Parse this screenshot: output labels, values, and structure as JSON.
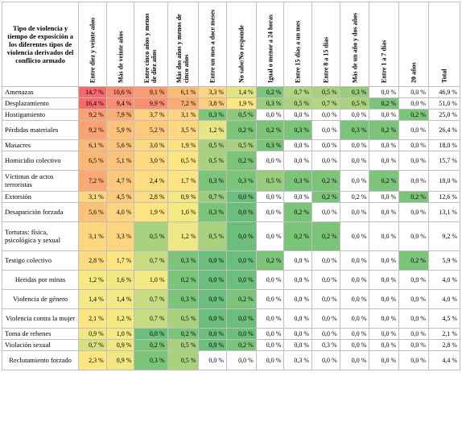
{
  "table": {
    "corner_header": "Tipo de violencia y tiempo de exposición a los diferentes tipos de violencia derivados del conflicto armado",
    "columns": [
      "Entre diez y veinte años",
      "Más de veinte años",
      "Entre cinco años y menos de diez años",
      "Más dos años y menos de cinco años",
      "Entre un mes a doce meses",
      "No sabe/No responde",
      "Igual o menor a 24 horas",
      "Entre 15 días a un mes",
      "Entre 8 a 15 días",
      "Más de un año y dos años",
      "Entre 1 a 7 días",
      "20 años",
      "Total"
    ],
    "rows": [
      {
        "label": "Amenazas",
        "values": [
          "14,7 %",
          "10,6 %",
          "9,1 %",
          "6,1 %",
          "3,3 %",
          "1,4 %",
          "0,2 %",
          "0,7 %",
          "0,5 %",
          "0,3 %",
          "0,0 %",
          "0,0 %",
          "46,9 %"
        ]
      },
      {
        "label": "Desplazamiento",
        "values": [
          "16,4 %",
          "9,4 %",
          "9,9 %",
          "7,2 %",
          "3,8 %",
          "1,9 %",
          "0,3 %",
          "0,5 %",
          "0,7 %",
          "0,5 %",
          "0,2 %",
          "0,0 %",
          "51,0 %"
        ]
      },
      {
        "label": "Hostigamiento",
        "values": [
          "9,2 %",
          "7,9 %",
          "3,7 %",
          "3,1 %",
          "0,3 %",
          "0,5 %",
          "0,0 %",
          "0,0 %",
          "0,0 %",
          "0,0 %",
          "0,0 %",
          "0,2 %",
          "25,0 %"
        ]
      },
      {
        "label": "Pérdidas materiales",
        "values": [
          "9,2 %",
          "5,9 %",
          "5,2 %",
          "3,5 %",
          "1,2 %",
          "0,2 %",
          "0,2 %",
          "0,3 %",
          "0,0 %",
          "0,3 %",
          "0,2 %",
          "0,0 %",
          "26,4 %"
        ]
      },
      {
        "label": "Masacres",
        "values": [
          "6,1 %",
          "5,6 %",
          "3,0 %",
          "1,9 %",
          "0,5 %",
          "0,5 %",
          "0,3 %",
          "0,0 %",
          "0,0 %",
          "0,0 %",
          "0,0 %",
          "0,0 %",
          "18,0 %"
        ]
      },
      {
        "label": "Homicidio colectivo",
        "values": [
          "6,5 %",
          "5,1 %",
          "3,0 %",
          "0,5 %",
          "0,5 %",
          "0,2 %",
          "0,0 %",
          "0,0 %",
          "0,0 %",
          "0,0 %",
          "0,0 %",
          "0,0 %",
          "15,7 %"
        ]
      },
      {
        "label": "Víctimas de actos terroristas",
        "values": [
          "7,2 %",
          "4,7 %",
          "2,4 %",
          "1,7 %",
          "0,3 %",
          "0,3 %",
          "0,5 %",
          "0,3 %",
          "0,2 %",
          "0,0 %",
          "0,2 %",
          "0,0 %",
          "18,0 %"
        ]
      },
      {
        "label": "Extorsión",
        "values": [
          "3,1 %",
          "4,5 %",
          "2,8 %",
          "0,9 %",
          "0,7 %",
          "0,0 %",
          "0,0 %",
          "0,0 %",
          "0,2 %",
          "0,2 %",
          "0,0 %",
          "0,2 %",
          "12,6 %"
        ]
      },
      {
        "label": "Desaparición forzada",
        "values": [
          "5,6 %",
          "4,0 %",
          "1,9 %",
          "1,0 %",
          "0,3 %",
          "0,0 %",
          "0,0 %",
          "0,2 %",
          "0,0 %",
          "0,0 %",
          "0,0 %",
          "0,0 %",
          "13,1 %"
        ]
      },
      {
        "label": "Torturas: física, psicológica y sexual",
        "values": [
          "3,1 %",
          "3,3 %",
          "0,5 %",
          "1,2 %",
          "0,5 %",
          "0,0 %",
          "0,0 %",
          "0,2 %",
          "0,2 %",
          "0,0 %",
          "0,0 %",
          "0,0 %",
          "9,2 %"
        ]
      },
      {
        "label": "Testigo colectivo",
        "values": [
          "2,8 %",
          "1,7 %",
          "0,7 %",
          "0,3 %",
          "0,0 %",
          "0,0 %",
          "0,2 %",
          "0,0 %",
          "0,0 %",
          "0,0 %",
          "0,0 %",
          "0,2 %",
          "5,9 %"
        ]
      },
      {
        "label": "Heridas por minas",
        "center": true,
        "values": [
          "1,2 %",
          "1,6 %",
          "1,0 %",
          "0,2 %",
          "0,0 %",
          "0,0 %",
          "0,0 %",
          "0,0 %",
          "0,0 %",
          "0,0 %",
          "0,0 %",
          "0,0 %",
          "4,0 %"
        ]
      },
      {
        "label": "Violencia de género",
        "center": true,
        "values": [
          "1,4 %",
          "1,4 %",
          "0,7 %",
          "0,3 %",
          "0,0 %",
          "0,2 %",
          "0,0 %",
          "0,0 %",
          "0,0 %",
          "0,0 %",
          "0,0 %",
          "0,0 %",
          "4,0 %"
        ]
      },
      {
        "label": "Violencia contra la mujer",
        "center": true,
        "values": [
          "2,1 %",
          "1,2 %",
          "0,7 %",
          "0,5 %",
          "0,0 %",
          "0,0 %",
          "0,0 %",
          "0,0 %",
          "0,0 %",
          "0,0 %",
          "0,0 %",
          "0,0 %",
          "4,5 %"
        ]
      },
      {
        "label": "Toma de rehenes",
        "values": [
          "0,9 %",
          "1,0 %",
          "0,0 %",
          "0,2 %",
          "0,0 %",
          "0,0 %",
          "0,0 %",
          "0,0 %",
          "0,0 %",
          "0,0 %",
          "0,0 %",
          "0,0 %",
          "2,1 %"
        ]
      },
      {
        "label": "Violación sexual",
        "values": [
          "0,7 %",
          "0,9 %",
          "0,2 %",
          "0,5 %",
          "0,0 %",
          "0,2 %",
          "0,0 %",
          "0,0 %",
          "0,3 %",
          "0,0 %",
          "0,0 %",
          "0,0 %",
          "2,8 %"
        ]
      },
      {
        "label": "Reclutamiento forzado",
        "center": true,
        "values": [
          "2,3 %",
          "0,9 %",
          "0,3 %",
          "0,5 %",
          "0,0 %",
          "0,0 %",
          "0,0 %",
          "0,3 %",
          "0,0 %",
          "0,0 %",
          "0,0 %",
          "0,0 %",
          "4,4 %"
        ]
      }
    ],
    "row_heights": [
      14,
      14,
      14,
      24,
      14,
      24,
      26,
      14,
      24,
      36,
      24,
      24,
      24,
      24,
      14,
      14,
      24
    ],
    "cell_colors": [
      [
        "#f8696b",
        "#f98b6f",
        "#fa9b72",
        "#fbbb76",
        "#fdd47f",
        "#e3e383",
        "#7cc47a",
        "#b5d680",
        "#aad27e",
        "#9acc7d",
        "#ffffff",
        "#ffffff"
      ],
      [
        "#f8696b",
        "#f98f70",
        "#fa8e70",
        "#fbab74",
        "#fccd7e",
        "#fee683",
        "#9acc7d",
        "#aad27e",
        "#b5d680",
        "#aad27e",
        "#7cc47a",
        "#ffffff"
      ],
      [
        "#fba272",
        "#fbae74",
        "#fdd17f",
        "#fdd47f",
        "#7cc47a",
        "#8dc87b",
        "#ffffff",
        "#ffffff",
        "#ffffff",
        "#ffffff",
        "#ffffff",
        "#7cc47a"
      ],
      [
        "#fba272",
        "#fcc27a",
        "#fdc97c",
        "#fed880",
        "#e8e583",
        "#7cc47a",
        "#7cc47a",
        "#7cc47a",
        "#ffffff",
        "#7cc47a",
        "#7cc47a",
        "#ffffff"
      ],
      [
        "#fbbb76",
        "#fcc47a",
        "#fdd981",
        "#fee182",
        "#a9d27f",
        "#a9d27f",
        "#7cc47a",
        "#ffffff",
        "#ffffff",
        "#ffffff",
        "#ffffff",
        "#ffffff"
      ],
      [
        "#fcb775",
        "#fcc47a",
        "#fdd981",
        "#fee583",
        "#a9d27f",
        "#7cc47a",
        "#ffffff",
        "#ffffff",
        "#ffffff",
        "#ffffff",
        "#ffffff",
        "#ffffff"
      ],
      [
        "#fba873",
        "#fdc87b",
        "#fedd81",
        "#fee382",
        "#7cc47a",
        "#7cc47a",
        "#9acc7d",
        "#7cc47a",
        "#7cc47a",
        "#ffffff",
        "#7cc47a",
        "#ffffff"
      ],
      [
        "#fdd780",
        "#fdca7c",
        "#fddd81",
        "#f3e884",
        "#9ace7d",
        "#6bbe7b",
        "#ffffff",
        "#ffffff",
        "#7cc47a",
        "#ffffff",
        "#ffffff",
        "#7cc47a"
      ],
      [
        "#fcc27a",
        "#fdd47f",
        "#fee382",
        "#f5e984",
        "#7cc47a",
        "#6bbe7b",
        "#ffffff",
        "#7cc47a",
        "#ffffff",
        "#ffffff",
        "#ffffff",
        "#ffffff"
      ],
      [
        "#fdd780",
        "#fdd580",
        "#a9d27f",
        "#eee784",
        "#a9d27f",
        "#6bbe7b",
        "#ffffff",
        "#7cc47a",
        "#7cc47a",
        "#ffffff",
        "#ffffff",
        "#ffffff"
      ],
      [
        "#fddc81",
        "#fee583",
        "#c8dc81",
        "#7cc47a",
        "#6bbe7b",
        "#6bbe7b",
        "#7cc47a",
        "#ffffff",
        "#ffffff",
        "#ffffff",
        "#ffffff",
        "#7cc47a"
      ],
      [
        "#f7e984",
        "#f1e884",
        "#f5e984",
        "#7cc47a",
        "#6bbe7b",
        "#6bbe7b",
        "#ffffff",
        "#ffffff",
        "#ffffff",
        "#ffffff",
        "#ffffff",
        "#ffffff"
      ],
      [
        "#f3e884",
        "#f3e884",
        "#c8dc81",
        "#7cc47a",
        "#6bbe7b",
        "#7cc47a",
        "#ffffff",
        "#ffffff",
        "#ffffff",
        "#ffffff",
        "#ffffff",
        "#ffffff"
      ],
      [
        "#fee683",
        "#f7e984",
        "#c8dc81",
        "#a9d27f",
        "#6bbe7b",
        "#6bbe7b",
        "#ffffff",
        "#ffffff",
        "#ffffff",
        "#ffffff",
        "#ffffff",
        "#ffffff"
      ],
      [
        "#f1e884",
        "#f5e984",
        "#6bbe7b",
        "#7cc47a",
        "#6bbe7b",
        "#6bbe7b",
        "#ffffff",
        "#ffffff",
        "#ffffff",
        "#ffffff",
        "#ffffff",
        "#ffffff"
      ],
      [
        "#d6e081",
        "#f1e884",
        "#7cc47a",
        "#a9d27f",
        "#6bbe7b",
        "#7cc47a",
        "#ffffff",
        "#ffffff",
        "#ffffff",
        "#ffffff",
        "#ffffff",
        "#ffffff"
      ],
      [
        "#fee683",
        "#f1e884",
        "#7cc47a",
        "#a9d27f",
        "#ffffff",
        "#ffffff",
        "#ffffff",
        "#ffffff",
        "#ffffff",
        "#ffffff",
        "#ffffff",
        "#ffffff"
      ]
    ]
  }
}
